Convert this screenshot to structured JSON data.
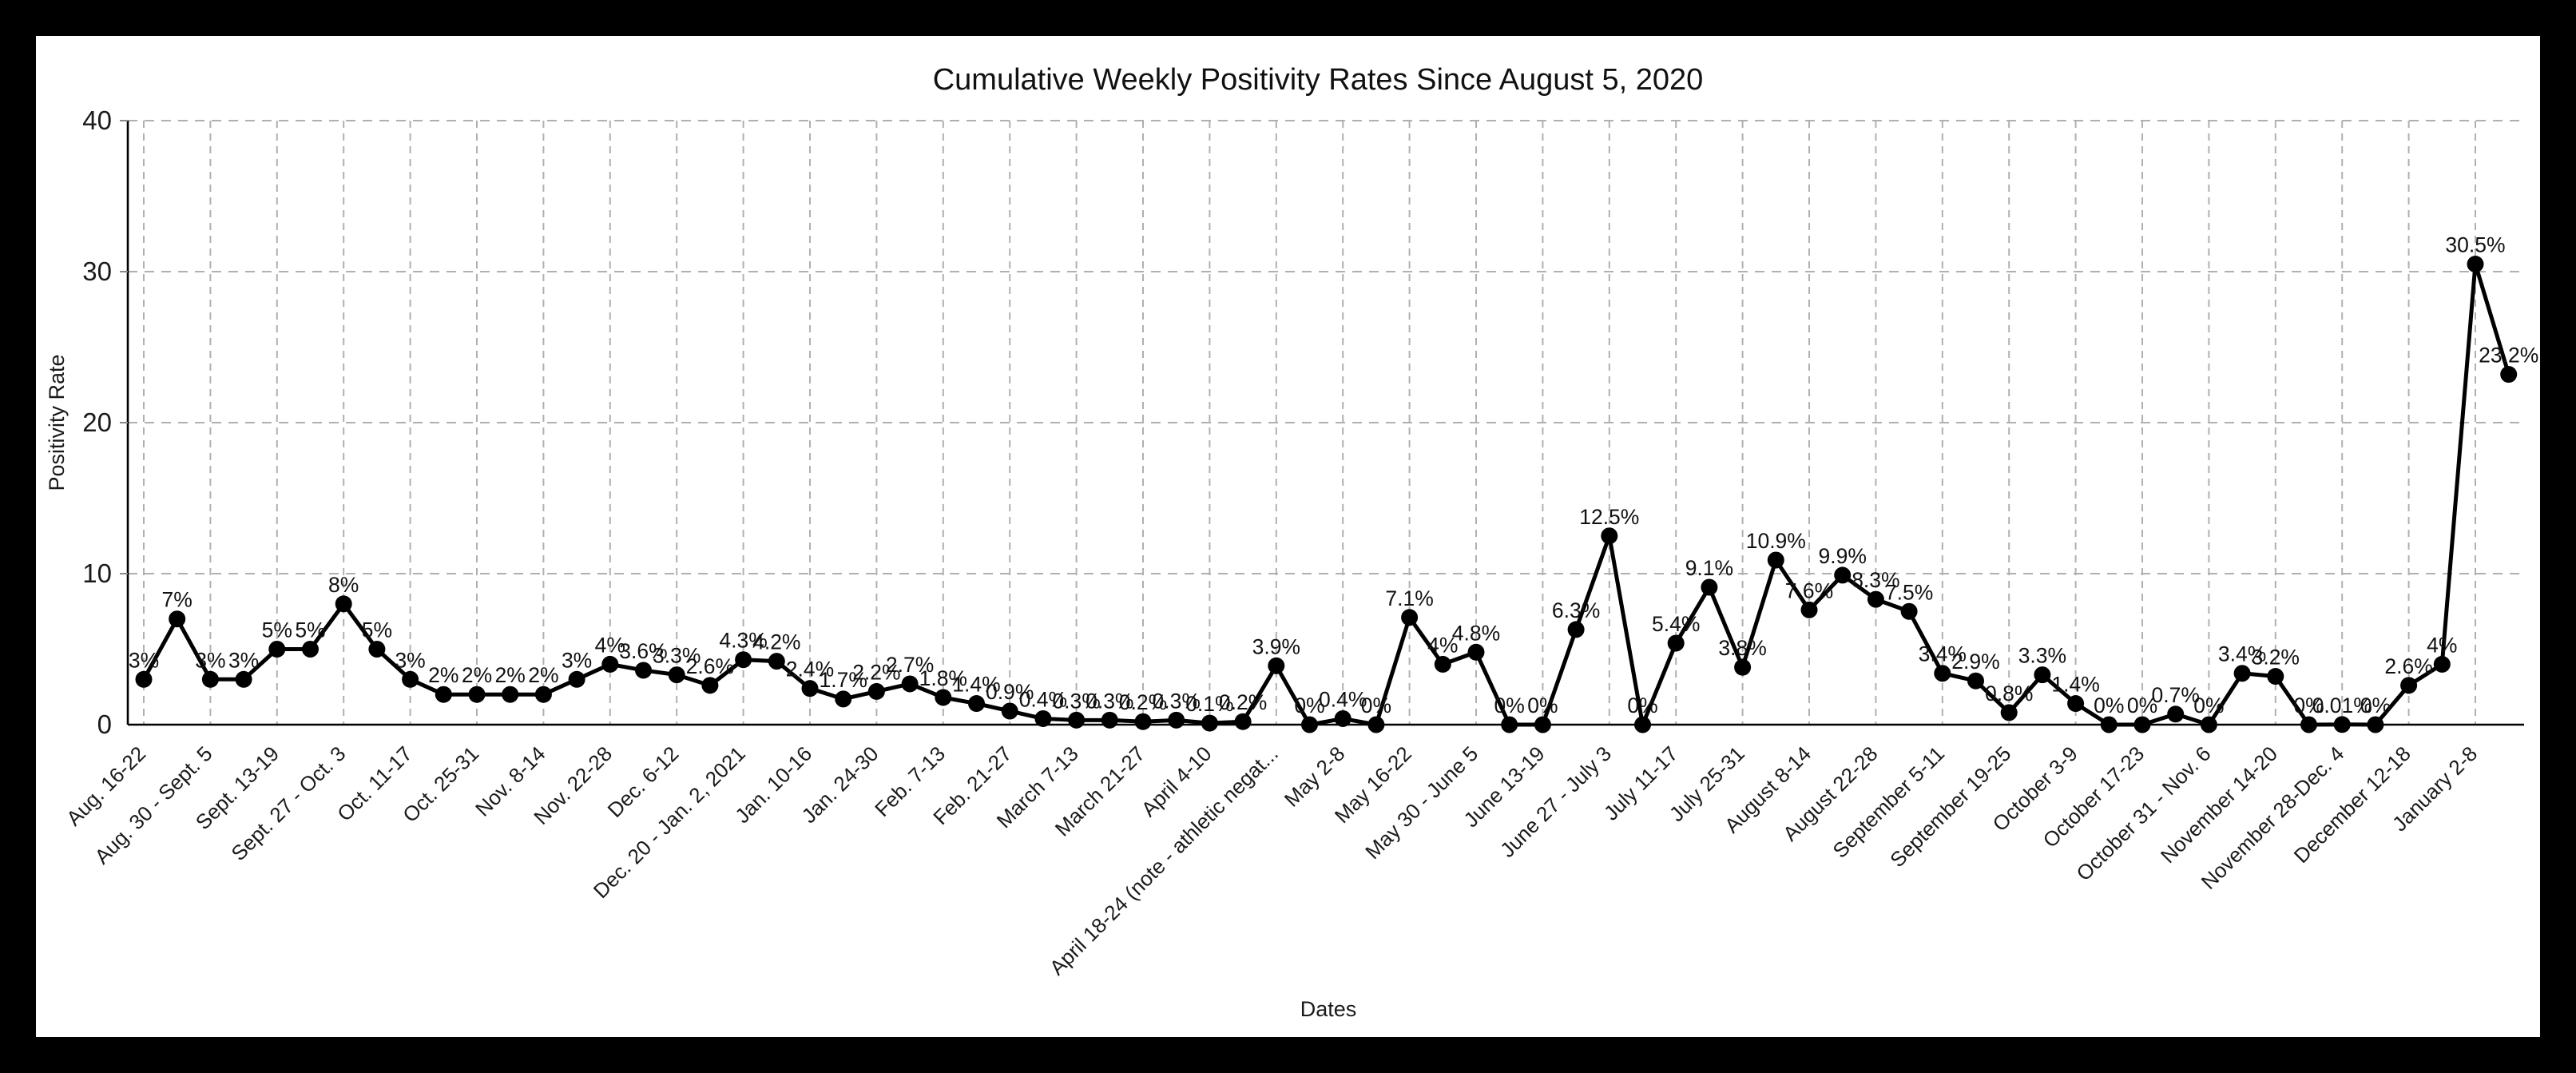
{
  "title": "Cumulative Weekly Positivity Rates Since August 5, 2020",
  "chart_data": {
    "type": "line",
    "title": "Cumulative Weekly Positivity Rates Since August 5, 2020",
    "xlabel": "Dates",
    "ylabel": "Positivity Rate",
    "ylim": [
      0,
      40
    ],
    "y_ticks": [
      0,
      10,
      20,
      30,
      40
    ],
    "y_tick_labels": [
      "0",
      "10",
      "20",
      "30",
      "40"
    ],
    "grid": "dashed",
    "legend_position": "none",
    "line_color": "#000000",
    "marker": "circle",
    "gridline_color": "#b0b0b0",
    "x_tick_every": 2,
    "x_tick_labels": [
      "Aug. 16-22",
      "Aug. 30 - Sept. 5",
      "Sept. 13-19",
      "Sept. 27 - Oct. 3",
      "Oct. 11-17",
      "Oct. 25-31",
      "Nov. 8-14",
      "Nov. 22-28",
      "Dec. 6-12",
      "Dec. 20 - Jan. 2, 2021",
      "Jan. 10-16",
      "Jan. 24-30",
      "Feb. 7-13",
      "Feb. 21-27",
      "March 7-13",
      "March 21-27",
      "April 4-10",
      "April 18-24 (note - athletic negat...",
      "May 2-8",
      "May 16-22",
      "May 30 - June 5",
      "June 13-19",
      "June 27 - July 3",
      "July 11-17",
      "July 25-31",
      "August 8-14",
      "August 22-28",
      "September 5-11",
      "September 19-25",
      "October 3-9",
      "October 17-23",
      "October 31 - Nov. 6",
      "November 14-20",
      "November 28-Dec. 4",
      "December 12-18",
      "January 2-8"
    ],
    "values": [
      3,
      7,
      3,
      3,
      5,
      5,
      8,
      5,
      3,
      2,
      2,
      2,
      2,
      3,
      4,
      3.6,
      3.3,
      2.6,
      4.3,
      4.2,
      2.4,
      1.7,
      2.2,
      2.7,
      1.8,
      1.4,
      0.9,
      0.4,
      0.3,
      0.3,
      0.2,
      0.3,
      0.1,
      0.2,
      3.9,
      0,
      0.4,
      0,
      7.1,
      4,
      4.8,
      0,
      0,
      6.3,
      12.5,
      0,
      5.4,
      9.1,
      3.8,
      10.9,
      7.6,
      9.9,
      8.3,
      7.5,
      3.4,
      2.9,
      0.8,
      3.3,
      1.4,
      0,
      0,
      0.7,
      0,
      3.4,
      3.2,
      0,
      0.01,
      0,
      2.6,
      4,
      30.5,
      23.2
    ],
    "point_labels": [
      "3%",
      "7%",
      "3%",
      "3%",
      "5%",
      "5%",
      "8%",
      "5%",
      "3%",
      "2%",
      "2%",
      "2%",
      "2%",
      "3%",
      "4%",
      "3.6%",
      "3.3%",
      "2.6%",
      "4.3%",
      "4.2%",
      "2.4%",
      "1.7%",
      "2.2%",
      "2.7%",
      "1.8%",
      "1.4%",
      "0.9%",
      "0.4%",
      "0.3%",
      "0.3%",
      "0.2%",
      "0.3%",
      "0.1%",
      "0.2%",
      "3.9%",
      "0%",
      "0.4%",
      "0%",
      "7.1%",
      "4%",
      "4.8%",
      "0%",
      "0%",
      "6.3%",
      "12.5%",
      "0%",
      "5.4%",
      "9.1%",
      "3.8%",
      "10.9%",
      "7.6%",
      "9.9%",
      "8.3%",
      "7.5%",
      "3.4%",
      "2.9%",
      "0.8%",
      "3.3%",
      "1.4%",
      "0%",
      "0%",
      "0.7%",
      "0%",
      "3.4%",
      "3.2%",
      "0%",
      "0.01%",
      "0%",
      "2.6%",
      "4%",
      "30.5%",
      "23.2%"
    ]
  }
}
